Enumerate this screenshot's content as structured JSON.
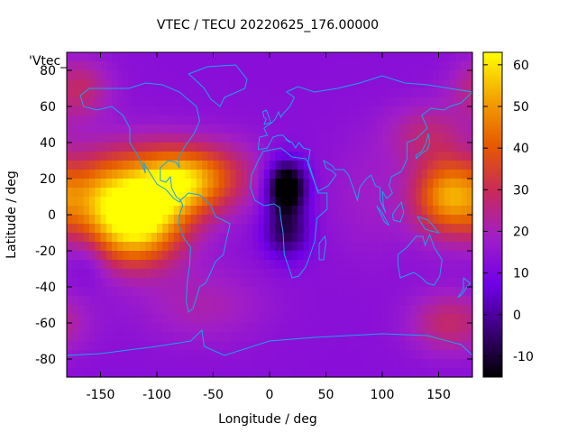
{
  "chart_data": {
    "type": "heatmap",
    "title": "VTEC / TECU 20220625_176.00000",
    "xlabel": "Longitude / deg",
    "ylabel": "Latitude / deg",
    "series_key": "'Vtec_",
    "xlim": [
      -180,
      180
    ],
    "ylim": [
      -90,
      90
    ],
    "x_ticks": [
      -150,
      -100,
      -50,
      0,
      50,
      100,
      150
    ],
    "y_ticks": [
      -80,
      -60,
      -40,
      -20,
      0,
      20,
      40,
      60,
      80
    ],
    "colorbar": {
      "range": [
        -15,
        63
      ],
      "ticks": [
        -10,
        0,
        10,
        20,
        30,
        40,
        50,
        60
      ],
      "colormap": [
        "#000000",
        "#3a0078",
        "#7000e8",
        "#a01ec8",
        "#c82a5a",
        "#e65a00",
        "#f3a300",
        "#ffff00"
      ]
    },
    "features": [
      {
        "lon": -105,
        "lat": 10,
        "amp": 45,
        "sx": 30,
        "sy": 18
      },
      {
        "lon": -120,
        "lat": -12,
        "amp": 25,
        "sx": 25,
        "sy": 14
      },
      {
        "lon": -150,
        "lat": 8,
        "amp": 25,
        "sx": 22,
        "sy": 18
      },
      {
        "lon": -70,
        "lat": 20,
        "amp": 25,
        "sx": 25,
        "sy": 12
      },
      {
        "lon": -35,
        "lat": 22,
        "amp": 10,
        "sx": 25,
        "sy": 15
      },
      {
        "lon": -170,
        "lat": 70,
        "amp": 15,
        "sx": 20,
        "sy": 12
      },
      {
        "lon": 160,
        "lat": 10,
        "amp": 38,
        "sx": 22,
        "sy": 15
      },
      {
        "lon": 140,
        "lat": 45,
        "amp": 12,
        "sx": 25,
        "sy": 12
      },
      {
        "lon": 160,
        "lat": -60,
        "amp": 15,
        "sx": 25,
        "sy": 12
      },
      {
        "lon": -60,
        "lat": -50,
        "amp": 8,
        "sx": 40,
        "sy": 15
      },
      {
        "lon": 15,
        "lat": 15,
        "amp": -38,
        "sx": 12,
        "sy": 10
      },
      {
        "lon": 15,
        "lat": -10,
        "amp": -20,
        "sx": 14,
        "sy": 10
      },
      {
        "lon": 90,
        "lat": 10,
        "amp": 5,
        "sx": 30,
        "sy": 25
      },
      {
        "lon": -160,
        "lat": -25,
        "amp": -6,
        "sx": 12,
        "sy": 10
      }
    ],
    "base_value": 13
  }
}
